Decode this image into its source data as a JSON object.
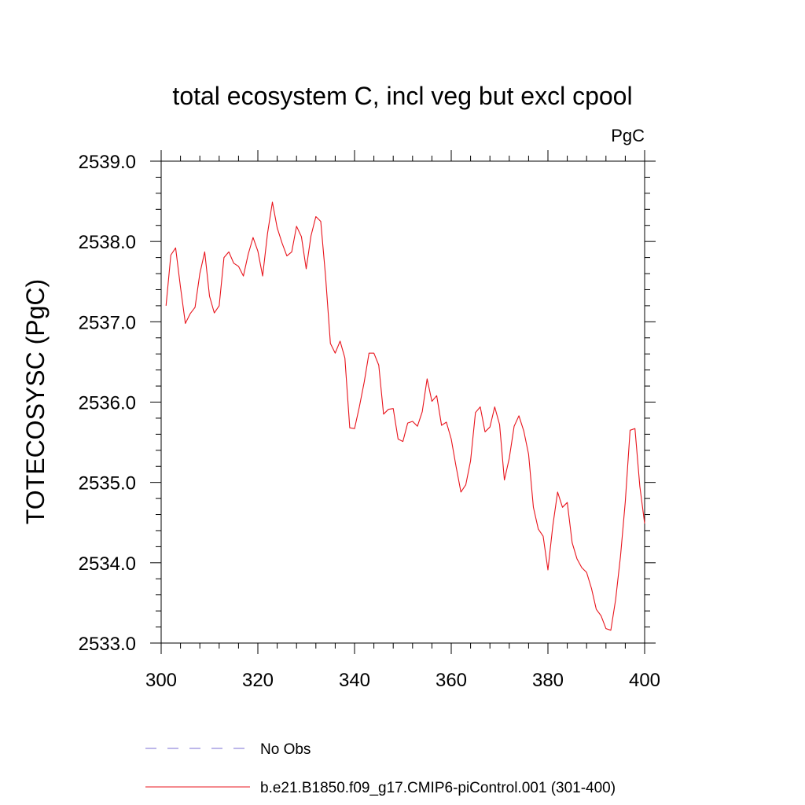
{
  "chart_data": {
    "type": "line",
    "title": "total ecosystem C, incl veg but excl cpool",
    "units": "PgC",
    "ylabel": "TOTECOSYSC  (PgC)",
    "xlabel": "",
    "xlim": [
      300,
      400
    ],
    "ylim": [
      2533.0,
      2539.0
    ],
    "xticks": [
      300,
      320,
      340,
      360,
      380,
      400
    ],
    "yticks": [
      2533.0,
      2534.0,
      2535.0,
      2536.0,
      2537.0,
      2538.0,
      2539.0
    ],
    "xtick_labels": [
      "300",
      "320",
      "340",
      "360",
      "380",
      "400"
    ],
    "ytick_labels": [
      "2533.0",
      "2534.0",
      "2535.0",
      "2536.0",
      "2537.0",
      "2538.0",
      "2539.0"
    ],
    "grid": false,
    "legend_placement": "bottom",
    "legend": [
      {
        "label": "No Obs",
        "color": "#7b6fd6",
        "style": "dashed"
      },
      {
        "label": "b.e21.B1850.f09_g17.CMIP6-piControl.001 (301-400)",
        "color": "#e8141c",
        "style": "solid"
      }
    ],
    "series": [
      {
        "name": "b.e21.B1850.f09_g17.CMIP6-piControl.001 (301-400)",
        "color": "#e8141c",
        "x": [
          301,
          302,
          303,
          304,
          305,
          306,
          307,
          308,
          309,
          310,
          311,
          312,
          313,
          314,
          315,
          316,
          317,
          318,
          319,
          320,
          321,
          322,
          323,
          324,
          325,
          326,
          327,
          328,
          329,
          330,
          331,
          332,
          333,
          334,
          335,
          336,
          337,
          338,
          339,
          340,
          341,
          342,
          343,
          344,
          345,
          346,
          347,
          348,
          349,
          350,
          351,
          352,
          353,
          354,
          355,
          356,
          357,
          358,
          359,
          360,
          361,
          362,
          363,
          364,
          365,
          366,
          367,
          368,
          369,
          370,
          371,
          372,
          373,
          374,
          375,
          376,
          377,
          378,
          379,
          380,
          381,
          382,
          383,
          384,
          385,
          386,
          387,
          388,
          389,
          390,
          391,
          392,
          393,
          394,
          395,
          396,
          397,
          398,
          399,
          400
        ],
        "values": [
          2537.2,
          2537.83,
          2537.92,
          2537.43,
          2536.98,
          2537.1,
          2537.18,
          2537.6,
          2537.87,
          2537.32,
          2537.11,
          2537.2,
          2537.8,
          2537.87,
          2537.73,
          2537.69,
          2537.57,
          2537.84,
          2538.05,
          2537.88,
          2537.57,
          2538.1,
          2538.49,
          2538.17,
          2537.98,
          2537.82,
          2537.87,
          2538.19,
          2538.06,
          2537.66,
          2538.07,
          2538.31,
          2538.25,
          2537.57,
          2536.73,
          2536.61,
          2536.76,
          2536.55,
          2535.68,
          2535.67,
          2535.94,
          2536.25,
          2536.61,
          2536.61,
          2536.46,
          2535.85,
          2535.91,
          2535.92,
          2535.54,
          2535.51,
          2535.74,
          2535.76,
          2535.7,
          2535.88,
          2536.29,
          2536.01,
          2536.08,
          2535.71,
          2535.75,
          2535.54,
          2535.2,
          2534.88,
          2534.97,
          2535.27,
          2535.87,
          2535.94,
          2535.63,
          2535.69,
          2535.94,
          2535.72,
          2535.03,
          2535.3,
          2535.7,
          2535.83,
          2535.64,
          2535.35,
          2534.69,
          2534.42,
          2534.33,
          2533.91,
          2534.46,
          2534.88,
          2534.69,
          2534.75,
          2534.25,
          2534.05,
          2533.94,
          2533.88,
          2533.68,
          2533.42,
          2533.34,
          2533.18,
          2533.16,
          2533.54,
          2534.08,
          2534.76,
          2535.65,
          2535.67,
          2534.95,
          2534.49
        ]
      }
    ]
  }
}
